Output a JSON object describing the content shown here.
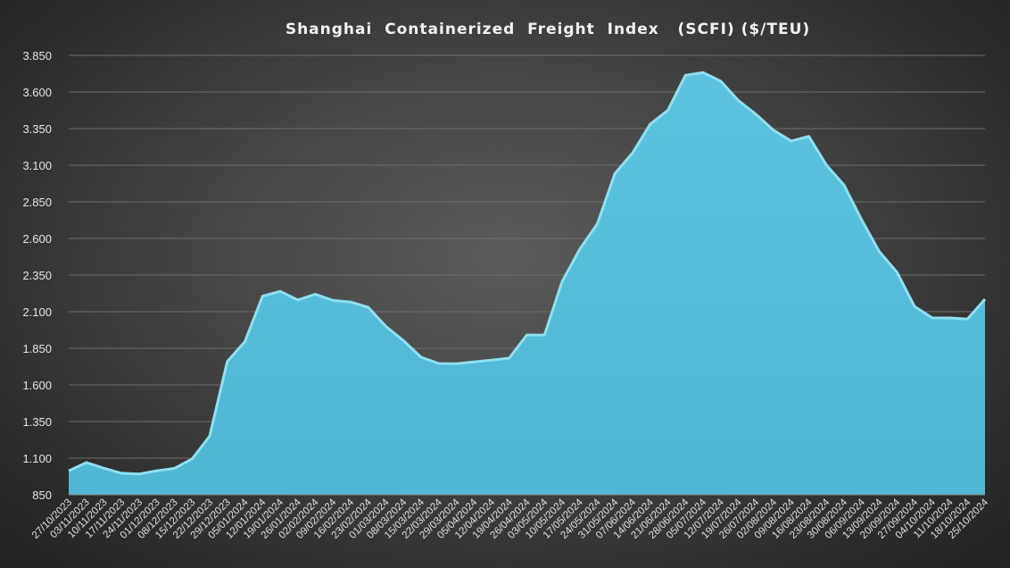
{
  "chart_data": {
    "type": "area",
    "title": "Shanghai  Containerized  Freight  Index   (SCFI) ($/TEU)",
    "xlabel": "",
    "ylabel": "",
    "ylim": [
      850,
      3850
    ],
    "yticks": [
      850,
      1100,
      1350,
      1600,
      1850,
      2100,
      2350,
      2600,
      2850,
      3100,
      3350,
      3600,
      3850
    ],
    "ytick_labels": [
      "850",
      "1.100",
      "1.350",
      "1.600",
      "1.850",
      "2.100",
      "2.350",
      "2.600",
      "2.850",
      "3.100",
      "3.350",
      "3.600",
      "3.850"
    ],
    "grid": true,
    "fill_color": "#4fb6d4",
    "edge_color": "#8fe0f2",
    "categories": [
      "27/10/2023",
      "03/11/2023",
      "10/11/2023",
      "17/11/2023",
      "24/11/2023",
      "01/12/2023",
      "08/12/2023",
      "15/12/2023",
      "22/12/2023",
      "29/12/2023",
      "05/01/2024",
      "12/01/2024",
      "19/01/2024",
      "26/01/2024",
      "02/02/2024",
      "09/02/2024",
      "16/02/2024",
      "23/02/2024",
      "01/03/2024",
      "08/03/2024",
      "15/03/2024",
      "22/03/2024",
      "29/03/2024",
      "05/04/2024",
      "12/04/2024",
      "19/04/2024",
      "26/04/2024",
      "03/05/2024",
      "10/05/2024",
      "17/05/2024",
      "24/05/2024",
      "31/05/2024",
      "07/06/2024",
      "14/06/2024",
      "21/06/2024",
      "28/06/2024",
      "05/07/2024",
      "12/07/2024",
      "19/07/2024",
      "26/07/2024",
      "02/08/2024",
      "09/08/2024",
      "16/08/2024",
      "23/08/2024",
      "30/08/2024",
      "06/09/2024",
      "13/09/2024",
      "20/09/2024",
      "27/09/2024",
      "04/10/2024",
      "11/10/2024",
      "18/10/2024",
      "25/10/2024"
    ],
    "values": [
      1013,
      1070,
      1031,
      997,
      992,
      1014,
      1030,
      1094,
      1251,
      1760,
      1896,
      2206,
      2239,
      2180,
      2219,
      2177,
      2166,
      2130,
      1999,
      1902,
      1789,
      1746,
      1745,
      1757,
      1769,
      1783,
      1941,
      1941,
      2305,
      2526,
      2700,
      3044,
      3184,
      3380,
      3475,
      3714,
      3733,
      3674,
      3542,
      3448,
      3339,
      3265,
      3297,
      3101,
      2964,
      2727,
      2510,
      2370,
      2136,
      2058,
      2057,
      2050,
      2185
    ]
  }
}
